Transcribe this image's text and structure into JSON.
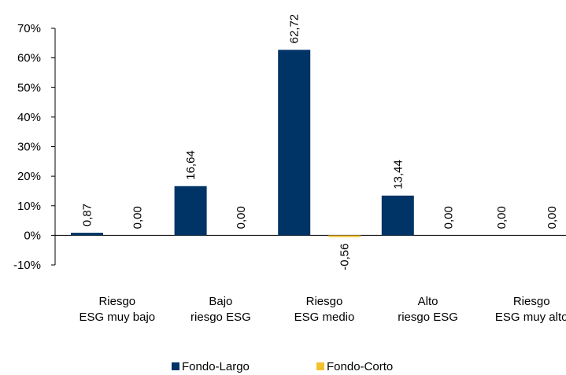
{
  "chart_data": {
    "type": "bar",
    "title": "",
    "xlabel": "",
    "ylabel": "",
    "categories": [
      [
        "Riesgo",
        "ESG muy bajo"
      ],
      [
        "Bajo",
        "riesgo ESG"
      ],
      [
        "Riesgo",
        "ESG medio"
      ],
      [
        "Alto",
        "riesgo ESG"
      ],
      [
        "Riesgo",
        "ESG muy alto"
      ]
    ],
    "series": [
      {
        "name": "Fondo-Largo",
        "color": "#003366",
        "values": [
          0.87,
          16.64,
          62.72,
          13.44,
          0.0
        ],
        "labels": [
          "0,87",
          "16,64",
          "62,72",
          "13,44",
          "0,00"
        ]
      },
      {
        "name": "Fondo-Corto",
        "color": "#F2C12E",
        "values": [
          0.0,
          0.0,
          -0.56,
          0.0,
          0.0
        ],
        "labels": [
          "0,00",
          "0,00",
          "-0,56",
          "0,00",
          "0,00"
        ]
      }
    ],
    "ylim": [
      -10,
      70
    ],
    "yticks": [
      -10,
      0,
      10,
      20,
      30,
      40,
      50,
      60,
      70
    ],
    "ytick_labels": [
      "-10%",
      "0%",
      "10%",
      "20%",
      "30%",
      "40%",
      "50%",
      "60%",
      "70%"
    ],
    "grid": false,
    "legend": "bottom"
  }
}
